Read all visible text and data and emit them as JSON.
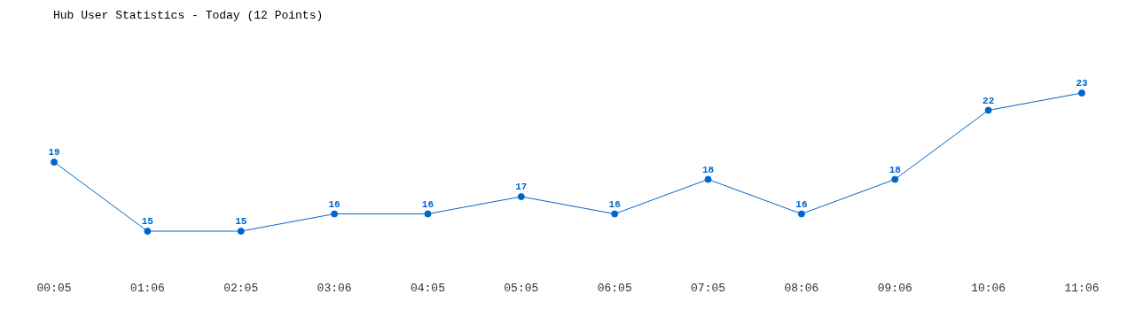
{
  "chart_data": {
    "type": "line",
    "title": "Hub User Statistics - Today (12 Points)",
    "categories": [
      "00:05",
      "01:06",
      "02:05",
      "03:06",
      "04:05",
      "05:05",
      "06:05",
      "07:05",
      "08:06",
      "09:06",
      "10:06",
      "11:06"
    ],
    "values": [
      19,
      15,
      15,
      16,
      16,
      17,
      16,
      18,
      16,
      18,
      22,
      23
    ],
    "color": "#0066cc",
    "marker": "circle",
    "data_labels": true
  }
}
